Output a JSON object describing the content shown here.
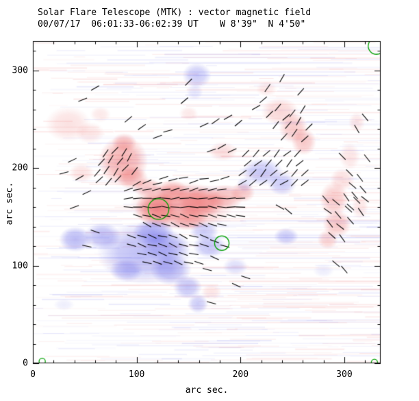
{
  "chart_data": {
    "type": "heatmap",
    "title": "Solar Flare Telescope (MTK) : vector magnetic field",
    "subtitle": "00/07/17  06:01:33-06:02:39 UT    W 8'39\"  N 4'50\"",
    "xlabel": "arc sec.",
    "ylabel": "arc sec.",
    "xlim": [
      0,
      335
    ],
    "ylim": [
      0,
      330
    ],
    "xticks": [
      0,
      100,
      200,
      300
    ],
    "yticks": [
      0,
      100,
      200,
      300
    ],
    "minor_tick_step": 20,
    "legend_position": "none",
    "grid": false,
    "colors": {
      "positive": "#e84646",
      "negative": "#5454e6",
      "vectors": "#000000",
      "contour": "#00a000",
      "frame": "#000000"
    },
    "blobs_positive": [
      [
        34,
        245,
        22,
        18,
        0.16
      ],
      [
        55,
        236,
        14,
        11,
        0.13
      ],
      [
        87,
        207,
        24,
        26,
        0.42
      ],
      [
        88,
        226,
        12,
        10,
        0.28
      ],
      [
        96,
        190,
        15,
        12,
        0.34
      ],
      [
        143,
        161,
        50,
        25,
        0.36
      ],
      [
        120,
        158,
        22,
        18,
        0.5
      ],
      [
        160,
        165,
        25,
        16,
        0.45
      ],
      [
        185,
        170,
        18,
        13,
        0.34
      ],
      [
        202,
        175,
        12,
        10,
        0.3
      ],
      [
        110,
        180,
        14,
        10,
        0.3
      ],
      [
        134,
        176,
        16,
        12,
        0.34
      ],
      [
        150,
        148,
        18,
        12,
        0.3
      ],
      [
        183,
        217,
        14,
        10,
        0.18
      ],
      [
        238,
        258,
        18,
        14,
        0.22
      ],
      [
        251,
        241,
        14,
        16,
        0.28
      ],
      [
        261,
        227,
        12,
        14,
        0.3
      ],
      [
        290,
        168,
        14,
        18,
        0.28
      ],
      [
        293,
        143,
        14,
        14,
        0.3
      ],
      [
        284,
        127,
        10,
        10,
        0.24
      ],
      [
        298,
        188,
        12,
        12,
        0.18
      ],
      [
        305,
        212,
        10,
        14,
        0.14
      ],
      [
        172,
        73,
        10,
        8,
        0.14
      ],
      [
        225,
        281,
        10,
        8,
        0.12
      ],
      [
        65,
        255,
        10,
        8,
        0.12
      ],
      [
        315,
        160,
        8,
        12,
        0.14
      ],
      [
        312,
        247,
        8,
        10,
        0.14
      ],
      [
        47,
        195,
        12,
        10,
        0.15
      ],
      [
        150,
        256,
        9,
        7,
        0.12
      ]
    ],
    "blobs_negative": [
      [
        107,
        113,
        45,
        32,
        0.38
      ],
      [
        67,
        130,
        18,
        14,
        0.38
      ],
      [
        116,
        134,
        20,
        14,
        0.42
      ],
      [
        133,
        96,
        20,
        16,
        0.4
      ],
      [
        149,
        78,
        14,
        12,
        0.34
      ],
      [
        41,
        127,
        16,
        13,
        0.4
      ],
      [
        158,
        295,
        14,
        13,
        0.3
      ],
      [
        156,
        278,
        8,
        8,
        0.14
      ],
      [
        221,
        196,
        20,
        14,
        0.32
      ],
      [
        240,
        184,
        14,
        12,
        0.3
      ],
      [
        244,
        130,
        12,
        9,
        0.3
      ],
      [
        159,
        61,
        10,
        10,
        0.3
      ],
      [
        170,
        120,
        16,
        12,
        0.34
      ],
      [
        90,
        95,
        16,
        12,
        0.3
      ],
      [
        195,
        99,
        12,
        9,
        0.2
      ],
      [
        204,
        183,
        8,
        8,
        0.18
      ],
      [
        30,
        60,
        10,
        6,
        0.1
      ],
      [
        280,
        95,
        10,
        7,
        0.1
      ],
      [
        165,
        135,
        14,
        10,
        0.3
      ],
      [
        128,
        120,
        24,
        16,
        0.3
      ]
    ],
    "vectors": {
      "length_arcsec": 9,
      "segments": [
        [
          92,
          178,
          20
        ],
        [
          101,
          178,
          12
        ],
        [
          110,
          178,
          8
        ],
        [
          119,
          178,
          15
        ],
        [
          128,
          178,
          5
        ],
        [
          137,
          178,
          18
        ],
        [
          146,
          178,
          10
        ],
        [
          155,
          178,
          22
        ],
        [
          164,
          178,
          8
        ],
        [
          173,
          178,
          14
        ],
        [
          182,
          178,
          6
        ],
        [
          92,
          169,
          10
        ],
        [
          101,
          169,
          5
        ],
        [
          110,
          169,
          0
        ],
        [
          119,
          169,
          8
        ],
        [
          128,
          169,
          -5
        ],
        [
          137,
          169,
          12
        ],
        [
          146,
          169,
          3
        ],
        [
          155,
          169,
          -8
        ],
        [
          164,
          169,
          5
        ],
        [
          173,
          169,
          10
        ],
        [
          182,
          169,
          -4
        ],
        [
          191,
          169,
          6
        ],
        [
          200,
          169,
          2
        ],
        [
          92,
          160,
          -5
        ],
        [
          101,
          160,
          0
        ],
        [
          110,
          160,
          -10
        ],
        [
          119,
          160,
          5
        ],
        [
          128,
          160,
          -12
        ],
        [
          137,
          160,
          -3
        ],
        [
          146,
          160,
          8
        ],
        [
          155,
          160,
          -6
        ],
        [
          164,
          160,
          0
        ],
        [
          173,
          160,
          -15
        ],
        [
          182,
          160,
          -8
        ],
        [
          191,
          160,
          4
        ],
        [
          200,
          160,
          -2
        ],
        [
          101,
          151,
          -18
        ],
        [
          110,
          151,
          -10
        ],
        [
          119,
          151,
          -22
        ],
        [
          128,
          151,
          -8
        ],
        [
          137,
          151,
          -15
        ],
        [
          146,
          151,
          -25
        ],
        [
          155,
          151,
          -12
        ],
        [
          164,
          151,
          -5
        ],
        [
          173,
          151,
          -20
        ],
        [
          182,
          151,
          -10
        ],
        [
          191,
          151,
          -16
        ],
        [
          200,
          151,
          -8
        ],
        [
          110,
          142,
          -30
        ],
        [
          119,
          142,
          -22
        ],
        [
          128,
          142,
          -15
        ],
        [
          137,
          142,
          -28
        ],
        [
          146,
          142,
          -20
        ],
        [
          155,
          142,
          -12
        ],
        [
          164,
          142,
          -25
        ],
        [
          173,
          142,
          -18
        ],
        [
          182,
          142,
          -10
        ],
        [
          100,
          184,
          30
        ],
        [
          110,
          186,
          22
        ],
        [
          120,
          184,
          12
        ],
        [
          126,
          190,
          18
        ],
        [
          135,
          188,
          15
        ],
        [
          145,
          190,
          10
        ],
        [
          155,
          186,
          20
        ],
        [
          165,
          189,
          5
        ],
        [
          175,
          187,
          12
        ],
        [
          185,
          190,
          18
        ],
        [
          95,
          130,
          -20
        ],
        [
          105,
          130,
          -15
        ],
        [
          115,
          130,
          -25
        ],
        [
          125,
          130,
          -10
        ],
        [
          135,
          130,
          -18
        ],
        [
          145,
          130,
          -30
        ],
        [
          155,
          130,
          -12
        ],
        [
          165,
          130,
          -22
        ],
        [
          95,
          121,
          -15
        ],
        [
          105,
          121,
          -25
        ],
        [
          115,
          121,
          -10
        ],
        [
          125,
          121,
          -20
        ],
        [
          135,
          121,
          -28
        ],
        [
          145,
          121,
          -15
        ],
        [
          155,
          121,
          -8
        ],
        [
          165,
          121,
          -18
        ],
        [
          105,
          112,
          -10
        ],
        [
          115,
          112,
          -18
        ],
        [
          125,
          112,
          -25
        ],
        [
          135,
          112,
          -12
        ],
        [
          145,
          112,
          -20
        ],
        [
          155,
          112,
          -8
        ],
        [
          110,
          103,
          -12
        ],
        [
          120,
          103,
          -20
        ],
        [
          130,
          103,
          -15
        ],
        [
          140,
          103,
          -25
        ],
        [
          150,
          103,
          -10
        ],
        [
          160,
          103,
          -18
        ],
        [
          175,
          125,
          -20
        ],
        [
          185,
          120,
          -15
        ],
        [
          175,
          108,
          -25
        ],
        [
          168,
          96,
          -15
        ],
        [
          62,
          195,
          50
        ],
        [
          71,
          198,
          55
        ],
        [
          80,
          196,
          60
        ],
        [
          89,
          200,
          45
        ],
        [
          98,
          197,
          52
        ],
        [
          66,
          206,
          48
        ],
        [
          75,
          209,
          58
        ],
        [
          84,
          207,
          50
        ],
        [
          93,
          211,
          62
        ],
        [
          70,
          215,
          55
        ],
        [
          79,
          218,
          45
        ],
        [
          88,
          216,
          58
        ],
        [
          64,
          188,
          42
        ],
        [
          73,
          186,
          50
        ],
        [
          82,
          189,
          47
        ],
        [
          202,
          185,
          30
        ],
        [
          212,
          185,
          40
        ],
        [
          222,
          185,
          35
        ],
        [
          232,
          185,
          50
        ],
        [
          242,
          185,
          28
        ],
        [
          252,
          185,
          45
        ],
        [
          262,
          185,
          38
        ],
        [
          202,
          195,
          35
        ],
        [
          212,
          195,
          45
        ],
        [
          222,
          195,
          55
        ],
        [
          232,
          195,
          40
        ],
        [
          242,
          195,
          30
        ],
        [
          252,
          195,
          50
        ],
        [
          262,
          195,
          42
        ],
        [
          207,
          205,
          40
        ],
        [
          217,
          205,
          35
        ],
        [
          227,
          205,
          50
        ],
        [
          237,
          205,
          45
        ],
        [
          247,
          205,
          55
        ],
        [
          257,
          205,
          38
        ],
        [
          205,
          215,
          45
        ],
        [
          215,
          215,
          50
        ],
        [
          225,
          215,
          40
        ],
        [
          235,
          215,
          55
        ],
        [
          245,
          215,
          35
        ],
        [
          255,
          215,
          48
        ],
        [
          282,
          168,
          130
        ],
        [
          292,
          165,
          140
        ],
        [
          302,
          170,
          125
        ],
        [
          312,
          167,
          135
        ],
        [
          284,
          156,
          145
        ],
        [
          294,
          152,
          130
        ],
        [
          304,
          158,
          138
        ],
        [
          286,
          143,
          128
        ],
        [
          296,
          140,
          142
        ],
        [
          306,
          146,
          132
        ],
        [
          288,
          131,
          138
        ],
        [
          298,
          128,
          126
        ],
        [
          242,
          232,
          48
        ],
        [
          252,
          236,
          55
        ],
        [
          262,
          230,
          42
        ],
        [
          246,
          244,
          50
        ],
        [
          256,
          248,
          60
        ],
        [
          266,
          242,
          45
        ],
        [
          250,
          256,
          52
        ],
        [
          260,
          260,
          58
        ],
        [
          244,
          252,
          40
        ],
        [
          236,
          262,
          50
        ],
        [
          228,
          255,
          45
        ],
        [
          234,
          244,
          52
        ],
        [
          305,
          195,
          135
        ],
        [
          315,
          190,
          128
        ],
        [
          308,
          182,
          140
        ],
        [
          318,
          178,
          132
        ],
        [
          306,
          160,
          138
        ],
        [
          316,
          155,
          125
        ],
        [
          310,
          172,
          130
        ],
        [
          320,
          168,
          142
        ],
        [
          150,
          288,
          45
        ],
        [
          146,
          269,
          40
        ],
        [
          165,
          244,
          25
        ],
        [
          176,
          248,
          35
        ],
        [
          188,
          252,
          30
        ],
        [
          198,
          246,
          40
        ],
        [
          130,
          238,
          15
        ],
        [
          120,
          232,
          20
        ],
        [
          38,
          208,
          25
        ],
        [
          30,
          195,
          15
        ],
        [
          45,
          190,
          30
        ],
        [
          215,
          262,
          30
        ],
        [
          222,
          270,
          40
        ],
        [
          172,
          218,
          20
        ],
        [
          182,
          222,
          30
        ],
        [
          192,
          218,
          25
        ],
        [
          238,
          160,
          150
        ],
        [
          246,
          156,
          140
        ],
        [
          226,
          282,
          55
        ],
        [
          240,
          292,
          60
        ],
        [
          258,
          278,
          48
        ],
        [
          298,
          212,
          135
        ],
        [
          52,
          175,
          25
        ],
        [
          40,
          160,
          20
        ],
        [
          312,
          240,
          120
        ],
        [
          320,
          252,
          130
        ],
        [
          322,
          210,
          128
        ],
        [
          60,
          135,
          -20
        ],
        [
          52,
          120,
          -12
        ],
        [
          205,
          88,
          -18
        ],
        [
          196,
          80,
          -25
        ],
        [
          172,
          62,
          -15
        ],
        [
          292,
          102,
          140
        ],
        [
          300,
          96,
          130
        ],
        [
          60,
          282,
          30
        ],
        [
          48,
          270,
          22
        ],
        [
          92,
          250,
          40
        ],
        [
          105,
          242,
          35
        ]
      ]
    },
    "contours": [
      [
        121,
        158,
        10
      ],
      [
        182,
        123,
        7
      ]
    ],
    "corner_marks": [
      [
        331,
        325,
        8
      ],
      [
        9,
        2,
        3
      ],
      [
        329,
        1,
        3
      ]
    ],
    "noise": {
      "seed": 13,
      "streaks": 620
    }
  }
}
